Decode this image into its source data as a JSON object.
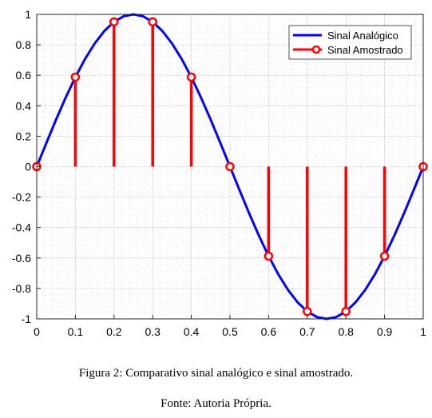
{
  "caption": "Figura 2: Comparativo sinal analógico e sinal amostrado.",
  "source": "Fonte: Autoria Própria.",
  "chart_data": {
    "type": "line",
    "title": "",
    "xlabel": "",
    "ylabel": "",
    "xlim": [
      0,
      1
    ],
    "ylim": [
      -1,
      1
    ],
    "grid": "major and minor (dotted)",
    "legend_position": "top-right",
    "xticks": [
      "0",
      "0.1",
      "0.2",
      "0.3",
      "0.4",
      "0.5",
      "0.6",
      "0.7",
      "0.8",
      "0.9",
      "1"
    ],
    "yticks": [
      "-1",
      "-0.8",
      "-0.6",
      "-0.4",
      "-0.2",
      "0",
      "0.2",
      "0.4",
      "0.6",
      "0.8",
      "1"
    ],
    "series": [
      {
        "name": "Sinal Analógico",
        "kind": "line",
        "color": "#0000ff",
        "x": [
          0,
          0.025,
          0.05,
          0.075,
          0.1,
          0.125,
          0.15,
          0.175,
          0.2,
          0.225,
          0.25,
          0.275,
          0.3,
          0.325,
          0.35,
          0.375,
          0.4,
          0.425,
          0.45,
          0.475,
          0.5,
          0.525,
          0.55,
          0.575,
          0.6,
          0.625,
          0.65,
          0.675,
          0.7,
          0.725,
          0.75,
          0.775,
          0.8,
          0.825,
          0.85,
          0.875,
          0.9,
          0.925,
          0.95,
          0.975,
          1
        ],
        "y": [
          0,
          0.156,
          0.309,
          0.454,
          0.588,
          0.707,
          0.809,
          0.891,
          0.951,
          0.988,
          1,
          0.988,
          0.951,
          0.891,
          0.809,
          0.707,
          0.588,
          0.454,
          0.309,
          0.156,
          0,
          -0.156,
          -0.309,
          -0.454,
          -0.588,
          -0.707,
          -0.809,
          -0.891,
          -0.951,
          -0.988,
          -1,
          -0.988,
          -0.951,
          -0.891,
          -0.809,
          -0.707,
          -0.588,
          -0.454,
          -0.309,
          -0.156,
          0
        ]
      },
      {
        "name": "Sinal Amostrado",
        "kind": "stem",
        "color": "#ff0000",
        "x": [
          0,
          0.1,
          0.2,
          0.3,
          0.4,
          0.5,
          0.6,
          0.7,
          0.8,
          0.9,
          1
        ],
        "y": [
          0,
          0.588,
          0.951,
          0.951,
          0.588,
          0,
          -0.588,
          -0.951,
          -0.951,
          -0.588,
          0
        ]
      }
    ]
  }
}
